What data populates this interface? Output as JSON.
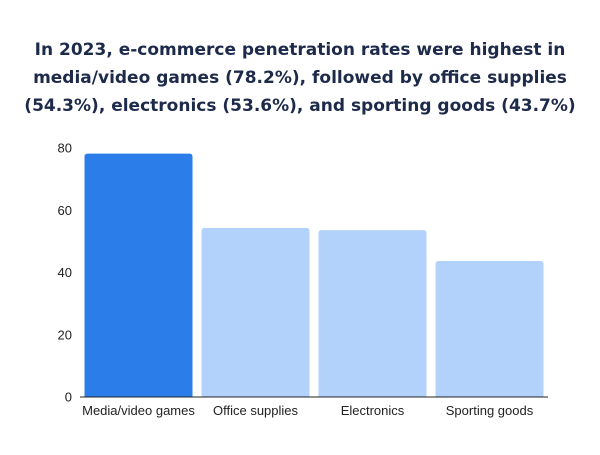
{
  "chart_data": {
    "type": "bar",
    "title_lines": [
      "In 2023, e-commerce penetration rates were highest in",
      "media/video games (78.2%), followed by office supplies",
      "(54.3%), electronics (53.6%), and sporting goods (43.7%)"
    ],
    "categories": [
      "Media/video games",
      "Office supplies",
      "Electronics",
      "Sporting goods"
    ],
    "values": [
      78.2,
      54.3,
      53.6,
      43.7
    ],
    "ylim": [
      0,
      80
    ],
    "yticks": [
      0,
      20,
      40,
      60,
      80
    ],
    "xlabel": "",
    "ylabel": "",
    "grid": false,
    "colors": {
      "highlight": "#2b7de9",
      "default": "#b3d2fb",
      "axis": "#222222",
      "title": "#1d2a4a"
    },
    "highlight_index": 0
  }
}
